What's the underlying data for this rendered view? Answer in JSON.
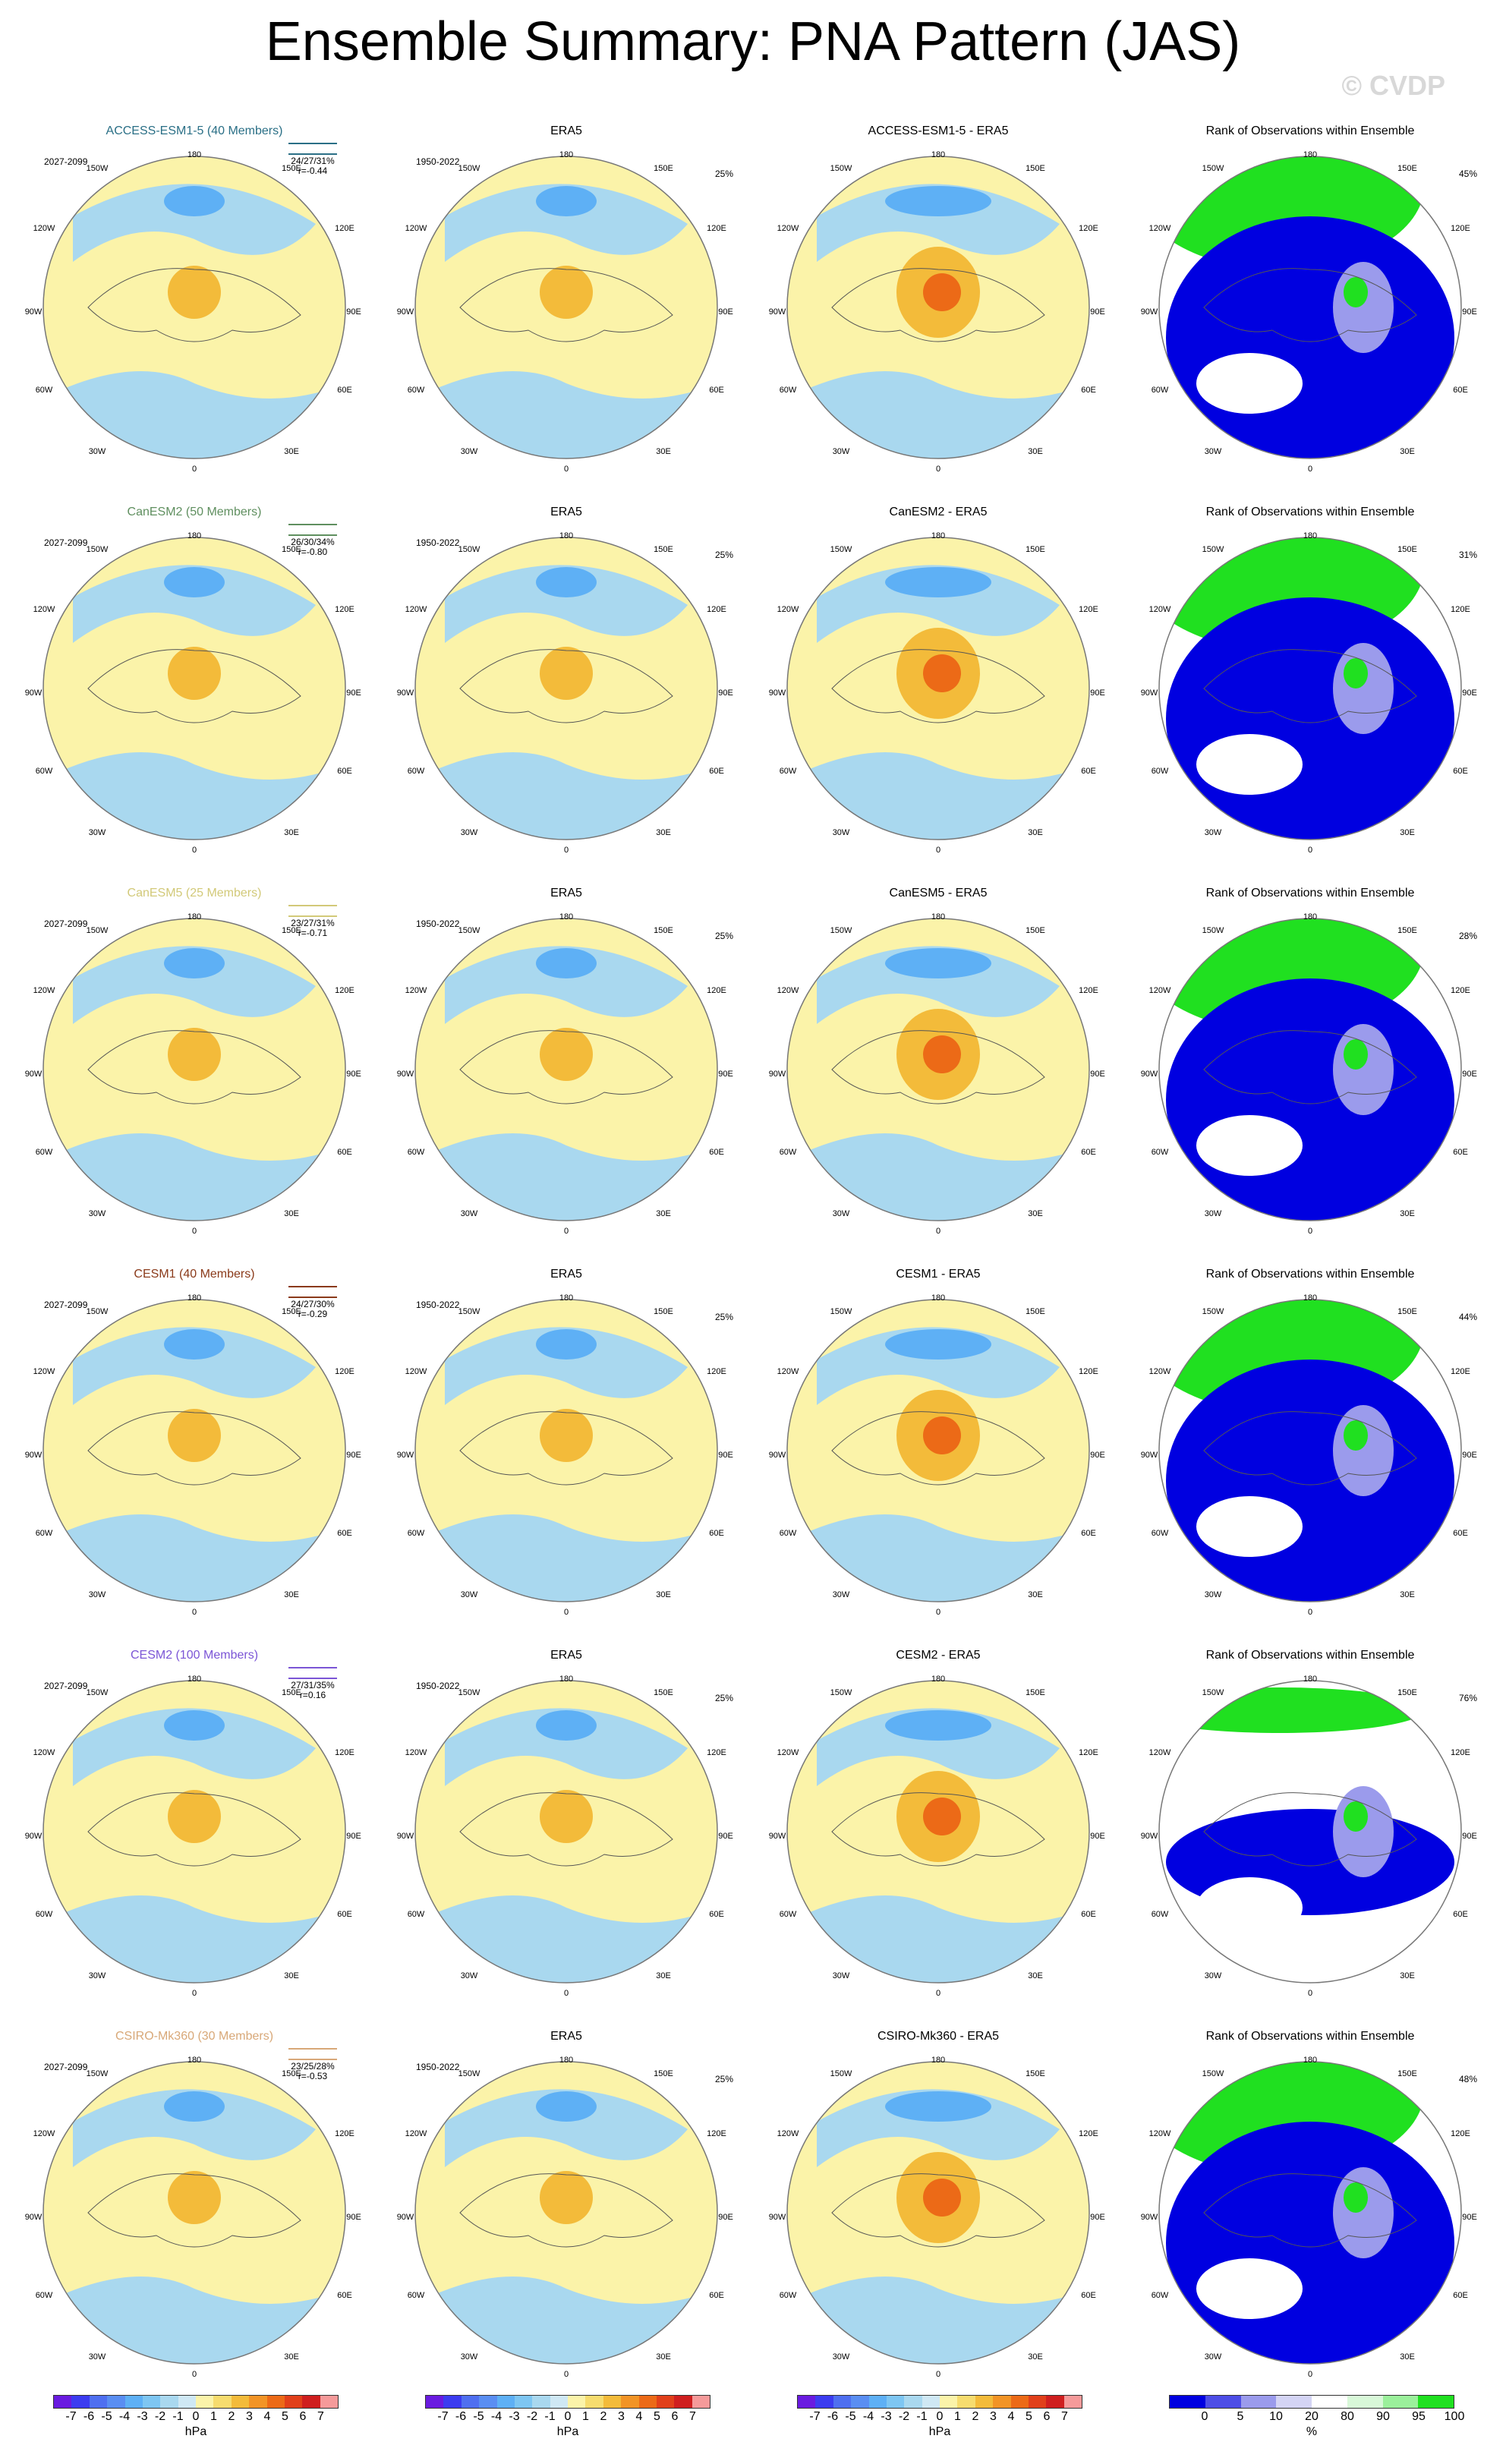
{
  "page": {
    "title": "Ensemble Summary: PNA Pattern (JAS)",
    "credit": "© CVDP"
  },
  "coord_labels": [
    "180",
    "150W",
    "150E",
    "120W",
    "120E",
    "90W",
    "90E",
    "60W",
    "60E",
    "30W",
    "30E",
    "0"
  ],
  "rows": [
    {
      "model": "ACCESS-ESM1-5 (40 Members)",
      "model_color": "#2a6f86",
      "diff_title": "ACCESS-ESM1-5 - ERA5",
      "years": "2027-2099",
      "stats1": "24/27/31%",
      "stats2": "r=-0.44",
      "rank_pct": "45%",
      "era_pct": "25%"
    },
    {
      "model": "CanESM2 (50 Members)",
      "model_color": "#5f8f5f",
      "diff_title": "CanESM2 - ERA5",
      "years": "2027-2099",
      "stats1": "26/30/34%",
      "stats2": "r=-0.80",
      "rank_pct": "31%",
      "era_pct": "25%"
    },
    {
      "model": "CanESM5 (25 Members)",
      "model_color": "#d2c978",
      "diff_title": "CanESM5 - ERA5",
      "years": "2027-2099",
      "stats1": "23/27/31%",
      "stats2": "r=-0.71",
      "rank_pct": "28%",
      "era_pct": "25%"
    },
    {
      "model": "CESM1 (40 Members)",
      "model_color": "#8a3a1a",
      "diff_title": "CESM1 - ERA5",
      "years": "2027-2099",
      "stats1": "24/27/30%",
      "stats2": "r=-0.29",
      "rank_pct": "44%",
      "era_pct": "25%"
    },
    {
      "model": "CESM2 (100 Members)",
      "model_color": "#7b55d6",
      "diff_title": "CESM2 - ERA5",
      "years": "2027-2099",
      "stats1": "27/31/35%",
      "stats2": "r=0.16",
      "rank_pct": "76%",
      "era_pct": "25%"
    },
    {
      "model": "CSIRO-Mk360 (30 Members)",
      "model_color": "#d8a878",
      "diff_title": "CSIRO-Mk360 - ERA5",
      "years": "2027-2099",
      "stats1": "23/25/28%",
      "stats2": "r=-0.53",
      "rank_pct": "48%",
      "era_pct": "25%"
    }
  ],
  "era": {
    "title": "ERA5",
    "years": "1950-2022"
  },
  "rank_title": "Rank of Observations within Ensemble",
  "colorbar_hpa": {
    "ticks": [
      "-7",
      "-6",
      "-5",
      "-4",
      "-3",
      "-2",
      "-1",
      "0",
      "1",
      "2",
      "3",
      "4",
      "5",
      "6",
      "7"
    ],
    "unit": "hPa",
    "colors": [
      "#6a1be0",
      "#3c3cf0",
      "#4f6ff0",
      "#5a8ef2",
      "#5eb0f5",
      "#7ec6f2",
      "#a9d8ef",
      "#cfe8f4",
      "#fbf3a9",
      "#f6dc6e",
      "#f3bb3a",
      "#f29426",
      "#ec6a17",
      "#e1401a",
      "#cf1f1f",
      "#f59a9a"
    ]
  },
  "colorbar_rank": {
    "ticks": [
      "0",
      "5",
      "10",
      "20",
      "80",
      "90",
      "95",
      "100"
    ],
    "unit": "%",
    "colors": [
      "#0000e0",
      "#4e4ee6",
      "#9b9bec",
      "#d4d4f4",
      "#ffffff",
      "#d8f8d8",
      "#9bf09b",
      "#20e020"
    ]
  }
}
